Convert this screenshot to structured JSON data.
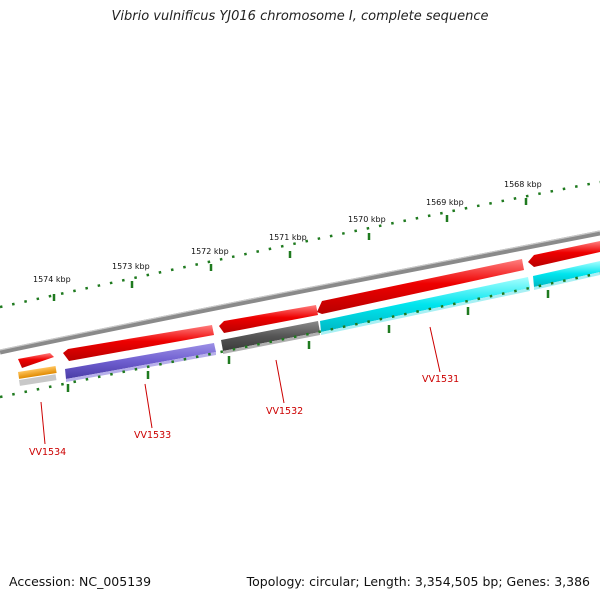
{
  "title": "Vibrio vulnificus YJ016 chromosome I, complete sequence",
  "footer": {
    "accession": "Accession: NC_005139",
    "summary": "Topology: circular; Length: 3,354,505 bp; Genes: 3,386"
  },
  "colors": {
    "backbone": "#8a8a8a",
    "ticks": "#1f7a1f",
    "label": "#cc0000",
    "red_feature": "#ee0000",
    "cyan_feature": "#00e5ee",
    "purple_feature": "#6f5fd0",
    "gray_feature": "#555555",
    "orange_feature": "#f29a00",
    "light_feature": "#c8c8c8"
  },
  "kbp_labels": [
    "1568 kbp",
    "1569 kbp",
    "1570 kbp",
    "1571 kbp",
    "1572 kbp",
    "1573 kbp",
    "1574 kbp"
  ],
  "gene_labels": [
    "VV1531",
    "VV1532",
    "VV1533",
    "VV1534"
  ]
}
